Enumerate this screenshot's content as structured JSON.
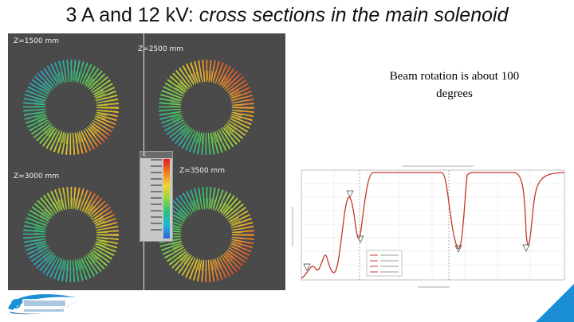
{
  "slide": {
    "title_prefix": "3 A and 12 kV: ",
    "title_italic": "cross sections in the main solenoid",
    "note_line1": "Beam rotation is about 100",
    "note_line2": "degrees",
    "logo_text": "HiLumi",
    "logo_subtext": "HL-LHC PROJECT"
  },
  "panel": {
    "labels": [
      "Z=1500 mm",
      "Z=2500 mm",
      "Z=3000 mm",
      "Z=3500 mm"
    ]
  },
  "colors": {
    "accent_blue": "#1a8fd6",
    "panel_bg": "#4a4a4a",
    "curve": "#c0392b"
  }
}
